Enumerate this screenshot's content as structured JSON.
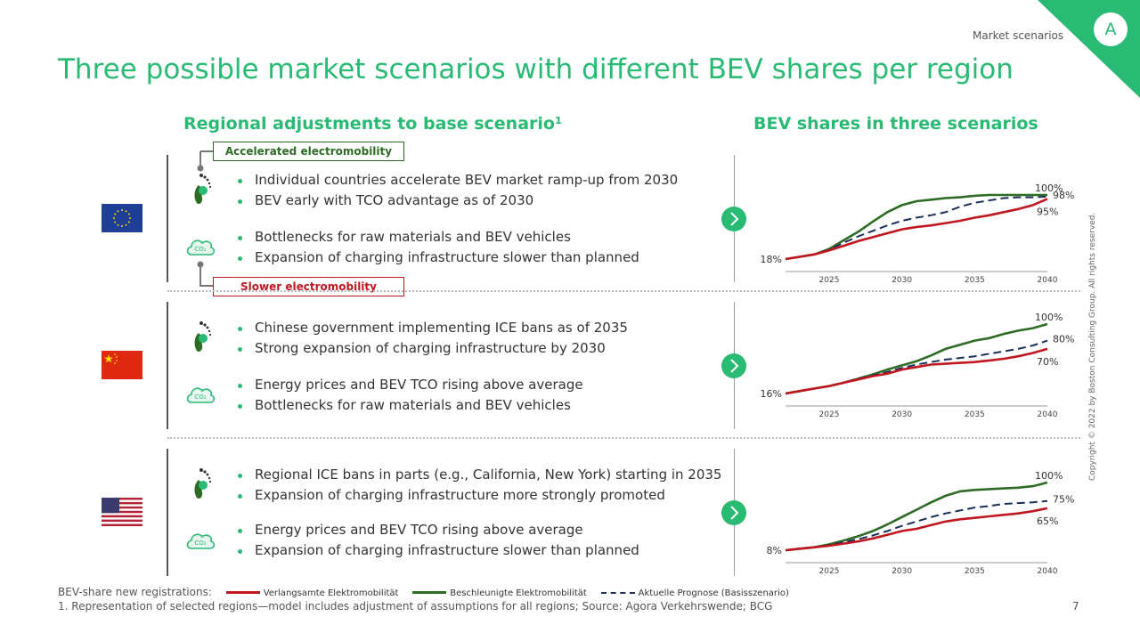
{
  "header": {
    "section": "Market scenarios",
    "badge": "A",
    "title": "Three possible market scenarios with different BEV shares per region"
  },
  "left_heading": "Regional adjustments to base scenario¹",
  "right_heading": "BEV shares in three scenarios",
  "boxes": {
    "accelerated": "Accelerated electromobility",
    "slower": "Slower electromobility"
  },
  "icons": {
    "footprint": "footprint-icon",
    "co2": "co2-cloud-icon",
    "co2_text": "CO₂",
    "arrow": "chevron-right-icon"
  },
  "colors": {
    "accent": "#29ba74",
    "slow": "#c0161f",
    "fast": "#2e6b25",
    "base": "#1a2f5a",
    "box_fast": "#2e6b25",
    "box_slow": "#c0161f"
  },
  "regions": [
    {
      "name": "EU",
      "flag": "eu-flag-icon",
      "bullets_top": [
        "Individual countries accelerate BEV market ramp-up from 2030",
        "BEV early with TCO advantage as of 2030"
      ],
      "bullets_bottom": [
        "Bottlenecks for raw materials and BEV vehicles",
        "Expansion of charging infrastructure slower than planned"
      ]
    },
    {
      "name": "China",
      "flag": "china-flag-icon",
      "bullets_top": [
        "Chinese government implementing ICE bans as of 2035",
        "Strong expansion of charging infrastructure by 2030"
      ],
      "bullets_bottom": [
        "Energy prices and BEV TCO rising above average",
        "Bottlenecks for raw materials and BEV vehicles"
      ]
    },
    {
      "name": "USA",
      "flag": "usa-flag-icon",
      "bullets_top": [
        "Regional ICE bans in parts (e.g., California, New York) starting in 2035",
        "Expansion of charging infrastructure more strongly promoted"
      ],
      "bullets_bottom": [
        "Energy prices and BEV TCO rising above average",
        "Expansion of charging infrastructure slower than planned"
      ]
    }
  ],
  "chart_data": [
    {
      "type": "line",
      "x": [
        2022,
        2023,
        2024,
        2025,
        2026,
        2027,
        2028,
        2029,
        2030,
        2031,
        2032,
        2033,
        2034,
        2035,
        2036,
        2037,
        2038,
        2039,
        2040
      ],
      "xticks": [
        "2025",
        "2030",
        "2035",
        "2040"
      ],
      "ylim": [
        18,
        100
      ],
      "start_label": "18%",
      "end_labels": [
        "100%",
        "98%",
        "95%"
      ],
      "series": [
        {
          "name": "Verlangsamte Elektromobilität",
          "values": [
            18,
            21,
            24,
            29,
            35,
            41,
            46,
            51,
            56,
            59,
            61,
            64,
            67,
            71,
            74,
            78,
            82,
            87,
            95
          ]
        },
        {
          "name": "Beschleunigte Elektromobilität",
          "values": [
            18,
            21,
            24,
            31,
            42,
            53,
            66,
            78,
            87,
            92,
            94,
            96,
            97,
            99,
            100,
            100,
            100,
            100,
            100
          ]
        },
        {
          "name": "Aktuelle Prognose (Basisszenario)",
          "values": [
            18,
            21,
            24,
            30,
            39,
            47,
            54,
            61,
            67,
            71,
            74,
            78,
            85,
            90,
            93,
            96,
            97,
            97,
            98
          ]
        }
      ]
    },
    {
      "type": "line",
      "x": [
        2022,
        2023,
        2024,
        2025,
        2026,
        2027,
        2028,
        2029,
        2030,
        2031,
        2032,
        2033,
        2034,
        2035,
        2036,
        2037,
        2038,
        2039,
        2040
      ],
      "xticks": [
        "2025",
        "2030",
        "2035",
        "2040"
      ],
      "ylim": [
        16,
        100
      ],
      "start_label": "16%",
      "end_labels": [
        "100%",
        "80%",
        "70%"
      ],
      "series": [
        {
          "name": "Verlangsamte Elektromobilität",
          "values": [
            16,
            19,
            22,
            25,
            29,
            33,
            37,
            40,
            45,
            48,
            51,
            52,
            53,
            54,
            56,
            58,
            61,
            65,
            70
          ]
        },
        {
          "name": "Beschleunigte Elektromobilität",
          "values": [
            16,
            19,
            22,
            25,
            29,
            34,
            39,
            45,
            50,
            55,
            62,
            70,
            75,
            80,
            83,
            88,
            92,
            95,
            100
          ]
        },
        {
          "name": "Aktuelle Prognose (Basisszenario)",
          "values": [
            16,
            19,
            22,
            25,
            29,
            34,
            38,
            42,
            47,
            51,
            54,
            57,
            59,
            61,
            64,
            67,
            70,
            74,
            80
          ]
        }
      ]
    },
    {
      "type": "line",
      "x": [
        2022,
        2023,
        2024,
        2025,
        2026,
        2027,
        2028,
        2029,
        2030,
        2031,
        2032,
        2033,
        2034,
        2035,
        2036,
        2037,
        2038,
        2039,
        2040
      ],
      "xticks": [
        "2025",
        "2030",
        "2035",
        "2040"
      ],
      "ylim": [
        8,
        100
      ],
      "start_label": "8%",
      "end_labels": [
        "100%",
        "75%",
        "65%"
      ],
      "series": [
        {
          "name": "Verlangsamte Elektromobilität",
          "values": [
            8,
            10,
            12,
            14,
            17,
            20,
            24,
            29,
            34,
            37,
            42,
            47,
            50,
            52,
            54,
            56,
            58,
            61,
            65
          ]
        },
        {
          "name": "Beschleunigte Elektromobilität",
          "values": [
            8,
            10,
            12,
            16,
            21,
            27,
            34,
            43,
            53,
            63,
            73,
            82,
            88,
            90,
            91,
            92,
            93,
            95,
            100
          ]
        },
        {
          "name": "Aktuelle Prognose (Basisszenario)",
          "values": [
            8,
            10,
            12,
            15,
            19,
            23,
            28,
            34,
            41,
            47,
            53,
            58,
            62,
            66,
            68,
            71,
            72,
            73,
            75
          ]
        }
      ]
    }
  ],
  "legend": {
    "prefix": "BEV-share new registrations:",
    "items": [
      "Verlangsamte Elektromobilität",
      "Beschleunigte Elektromobilität",
      "Aktuelle Prognose (Basisszenario)"
    ]
  },
  "footnote": "1. Representation of selected regions—model includes adjustment of assumptions for all regions; Source: Agora Verkehrswende; BCG",
  "page_number": "7",
  "copyright": "Copyright © 2022 by Boston Consulting Group. All rights reserved."
}
